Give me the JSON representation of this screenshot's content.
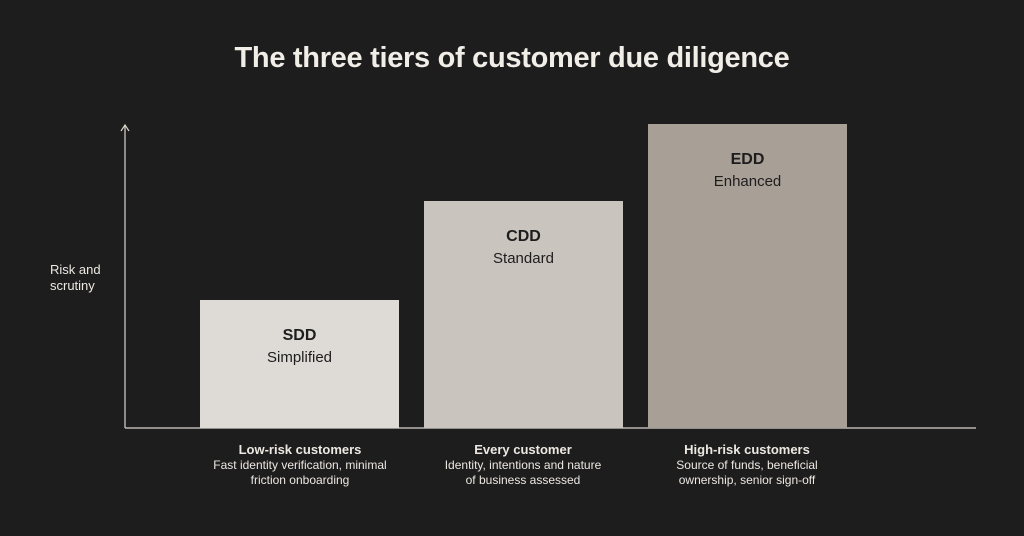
{
  "header": {
    "title": "The three tiers of customer due diligence"
  },
  "axis": {
    "label": [
      "Risk and",
      "scrutiny"
    ]
  },
  "tiers": [
    {
      "code": "SDD",
      "name": "Simplified",
      "audience": "Low-risk customers",
      "description": [
        "Fast identity verification, minimal",
        "friction onboarding"
      ]
    },
    {
      "code": "CDD",
      "name": "Standard",
      "audience": "Every customer",
      "description": [
        "Identity, intentions and nature",
        "of business assessed"
      ]
    },
    {
      "code": "EDD",
      "name": "Enhanced",
      "audience": "High-risk customers",
      "description": [
        "Source of funds, beneficial",
        "ownership, senior sign-off"
      ]
    }
  ]
}
